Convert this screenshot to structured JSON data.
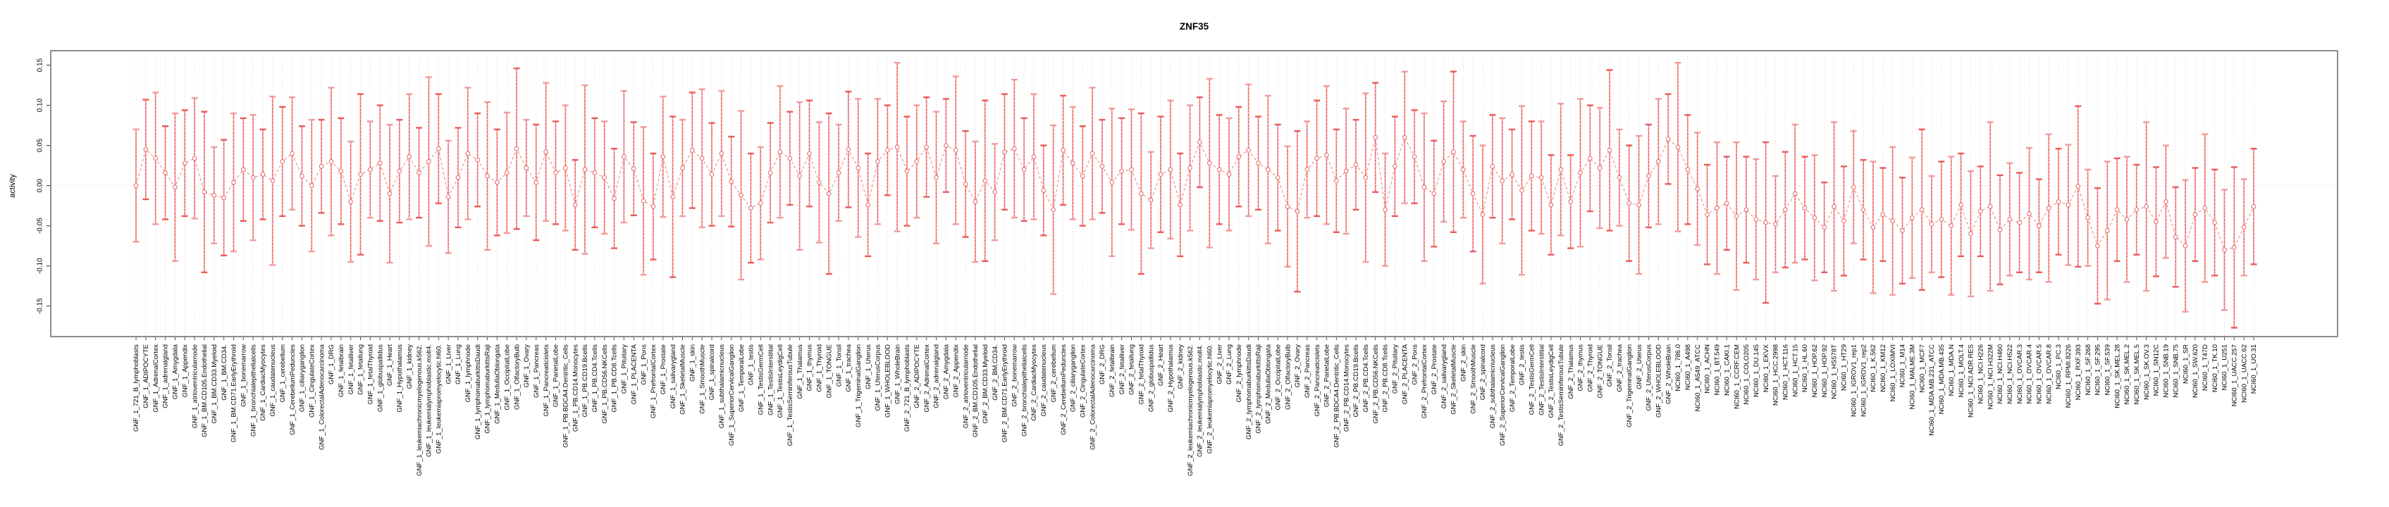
{
  "title": "ZNF35",
  "y_axis": {
    "label": "activity",
    "tick_labels": [
      "0.15",
      "0.10",
      "0.05",
      "0.00",
      "-0.05",
      "-0.10",
      "-0.15"
    ],
    "tick_values": [
      0.15,
      0.1,
      0.05,
      0.0,
      -0.05,
      -0.1,
      -0.15
    ]
  },
  "colors": {
    "bar_solid": "#f6a8a8",
    "bar_dash": "#e85757",
    "cap_light": "#f29b9b",
    "cap_dark": "#ea5b5b",
    "point": "#ec7272",
    "connect": "#ec8080",
    "grid": "#d9d9d9",
    "zero_line": "#d4d4d4",
    "box": "#8c8c8c",
    "tick": "#4d4d4d",
    "label_text": "#000000"
  },
  "chart_data": {
    "type": "scatter",
    "subtype": "points-with-error-bars",
    "title": "ZNF35",
    "xlabel": "",
    "ylabel": "activity",
    "ylim": [
      -0.188,
      0.168
    ],
    "grid": "vertical-dotted-per-category, dotted-zero-line",
    "legend": "none",
    "gnf_names": [
      "721_B_lymphoblasts",
      "ADIPOCYTE",
      "AdrenalCortex",
      "adrenalgland",
      "Amygdala",
      "Appendix",
      "atrioventricularnode",
      "BM.CD105.Endothelial",
      "BM.CD33.Myeloid",
      "BM.CD34.",
      "BM.CD71.EarlyErythroid",
      "bonemarrow",
      "bronchialepithelialcells",
      "CardiacMyocytes",
      "caudatenucleus",
      "cerebellum",
      "CerebellumPeduncles",
      "ciliaryganglion",
      "CingulateCortex",
      "ColorectalAdenocarcinoma",
      "DRG",
      "fetalbrain",
      "fetalliver",
      "fetallung",
      "fetalThyroid",
      "globuspallidus",
      "Heart",
      "Hypothalamus",
      "kidney",
      "leukemiachronicmyelogenous.k562.",
      "leukemialymphoblastic.molt4.",
      "leukemiapromyelocytic.hl60.",
      "Liver",
      "Lung",
      "lymphnode",
      "lymphomaburkittsDaudi",
      "lymphomaburkittsRaji",
      "MedullaOblongata",
      "OccipitalLobe",
      "OlfactoryBulb",
      "Ovary",
      "Pancreas",
      "Pancreaticislets",
      "ParietalLobe",
      "PB.BDCA4.Dentritic_Cells",
      "PB.CD14.Monocytes",
      "PB.CD19.Bcells",
      "PB.CD4.Tcells",
      "PB.CD56.NKCells",
      "PB.CD8.Tcells",
      "Pituitary",
      "PLACENTA",
      "Pons",
      "PrefrontalCortex",
      "Prostate",
      "salivarygland",
      "SkeletalMuscle",
      "skin",
      "SmoothMuscle",
      "spinalcord",
      "subthalamicnucleus",
      "SuperiorCervicalGanglion",
      "TemporalLobe",
      "testis",
      "TestisGermCell",
      "TestisInterstitial",
      "TestisLeydigCell",
      "TestisSeminiferousTubule",
      "Thalamus",
      "thymus",
      "Thyroid",
      "TONGUE",
      "Tonsil",
      "trachea",
      "TrigeminalGanglion",
      "Uterus",
      "UterusCorpus",
      "WHOLEBLOOD",
      "WholeBrain"
    ],
    "nci60_names": [
      "786.0",
      "A498",
      "A549_ATCC",
      "ACHN",
      "BT.549",
      "CAKI.1",
      "CCRF.CEM",
      "COLO205",
      "DU.145",
      "EKVX",
      "HCC.2998",
      "HCT.116",
      "HCT.15",
      "HL.60",
      "HOP.62",
      "HOP.92",
      "HS578T",
      "HT29",
      "IGROV1_rep1",
      "IGROV1_rep2",
      "K.562",
      "KM12",
      "LOXIMVI",
      "M14",
      "MALME.3M",
      "MCF7",
      "MDA.MB.231_ATCC",
      "MDA.MB.435",
      "MDA.N",
      "MOLT.4",
      "NCI.ADR.RES",
      "NCI.H226",
      "NCI.H322M",
      "NCI.H460",
      "NCI.H522",
      "OVCAR.3",
      "OVCAR.4",
      "OVCAR.5",
      "OVCAR.8",
      "PC.3",
      "RPMI.8226",
      "RXF.393",
      "SF.268",
      "SF.295",
      "SF.539",
      "SK.MEL.28",
      "SK.MEL.2",
      "SK.MEL.5",
      "SK.OV.3",
      "SN12C",
      "SNB.19",
      "SNB.75",
      "SR",
      "SW.620",
      "T47D",
      "TK.10",
      "U251",
      "UACC.257",
      "UACC.62",
      "UO.31"
    ],
    "category_groups": [
      {
        "prefix": "GNF_1_",
        "names_ref": "gnf_names"
      },
      {
        "prefix": "GNF_2_",
        "names_ref": "gnf_names"
      },
      {
        "prefix": "NCI60_1_",
        "names_ref": "nci60_names"
      }
    ],
    "values": [
      0.0,
      0.045,
      0.034,
      0.016,
      -0.002,
      0.028,
      0.034,
      -0.008,
      -0.012,
      -0.015,
      0.004,
      0.02,
      0.01,
      0.014,
      0.006,
      0.03,
      0.04,
      0.012,
      0.0,
      0.024,
      0.03,
      0.018,
      -0.02,
      0.014,
      0.02,
      0.028,
      -0.01,
      0.018,
      0.036,
      0.016,
      0.03,
      0.046,
      -0.014,
      0.01,
      0.04,
      0.032,
      0.012,
      0.004,
      0.016,
      0.046,
      0.022,
      0.004,
      0.042,
      0.016,
      0.022,
      -0.024,
      0.02,
      0.016,
      0.01,
      -0.016,
      0.036,
      0.021,
      -0.019,
      -0.026,
      0.036,
      -0.014,
      0.022,
      0.044,
      0.034,
      0.014,
      0.04,
      0.005,
      -0.012,
      -0.028,
      -0.022,
      0.016,
      0.042,
      0.034,
      0.012,
      0.04,
      0.004,
      -0.01,
      0.016,
      0.045,
      0.022,
      -0.024,
      0.03,
      0.044,
      0.048,
      0.018,
      0.03,
      0.048,
      0.01,
      0.05,
      0.044,
      0.002,
      -0.02,
      0.006,
      -0.008,
      0.042,
      0.046,
      0.02,
      0.036,
      -0.006,
      -0.03,
      0.044,
      0.028,
      0.012,
      0.04,
      0.024,
      0.004,
      0.018,
      0.02,
      -0.01,
      -0.018,
      0.014,
      0.02,
      -0.024,
      0.022,
      0.054,
      0.028,
      0.02,
      0.014,
      0.036,
      0.044,
      0.028,
      0.02,
      0.01,
      -0.026,
      -0.032,
      0.02,
      0.034,
      0.038,
      0.006,
      0.018,
      0.026,
      0.01,
      0.06,
      -0.03,
      0.024,
      0.06,
      0.036,
      -0.002,
      -0.01,
      0.03,
      0.042,
      0.02,
      -0.01,
      -0.036,
      0.024,
      0.006,
      0.014,
      -0.006,
      0.012,
      0.01,
      -0.024,
      0.02,
      -0.02,
      0.016,
      0.034,
      0.022,
      0.044,
      0.01,
      -0.022,
      -0.024,
      0.012,
      0.03,
      0.058,
      0.048,
      0.02,
      -0.004,
      -0.036,
      -0.028,
      -0.022,
      -0.038,
      -0.03,
      -0.042,
      -0.046,
      -0.048,
      -0.03,
      -0.01,
      -0.028,
      -0.04,
      -0.052,
      -0.026,
      -0.044,
      -0.002,
      -0.03,
      -0.052,
      -0.036,
      -0.044,
      -0.056,
      -0.04,
      -0.03,
      -0.048,
      -0.042,
      -0.05,
      -0.024,
      -0.06,
      -0.032,
      -0.026,
      -0.055,
      -0.042,
      -0.046,
      -0.035,
      -0.05,
      -0.028,
      -0.02,
      -0.024,
      -0.001,
      -0.04,
      -0.075,
      -0.056,
      -0.03,
      -0.042,
      -0.03,
      -0.026,
      -0.045,
      -0.02,
      -0.064,
      -0.075,
      -0.036,
      -0.028,
      -0.046,
      -0.08,
      -0.077,
      -0.052,
      -0.026
    ],
    "ci_half": [
      0.07,
      0.062,
      0.082,
      0.058,
      0.092,
      0.066,
      0.075,
      0.1,
      0.06,
      0.072,
      0.086,
      0.064,
      0.078,
      0.056,
      0.105,
      0.068,
      0.07,
      0.062,
      0.082,
      0.058,
      0.092,
      0.066,
      0.075,
      0.1,
      0.06,
      0.072,
      0.086,
      0.064,
      0.078,
      0.056,
      0.105,
      0.068,
      0.07,
      0.062,
      0.082,
      0.058,
      0.092,
      0.066,
      0.075,
      0.1,
      0.06,
      0.072,
      0.086,
      0.064,
      0.078,
      0.056,
      0.105,
      0.068,
      0.07,
      0.062,
      0.082,
      0.058,
      0.092,
      0.066,
      0.075,
      0.1,
      0.06,
      0.072,
      0.086,
      0.064,
      0.078,
      0.056,
      0.105,
      0.068,
      0.07,
      0.062,
      0.082,
      0.058,
      0.092,
      0.066,
      0.075,
      0.1,
      0.06,
      0.072,
      0.086,
      0.064,
      0.078,
      0.056,
      0.105,
      0.068,
      0.07,
      0.062,
      0.082,
      0.058,
      0.092,
      0.066,
      0.075,
      0.1,
      0.06,
      0.072,
      0.086,
      0.064,
      0.078,
      0.056,
      0.105,
      0.068,
      0.07,
      0.062,
      0.082,
      0.058,
      0.092,
      0.066,
      0.075,
      0.1,
      0.06,
      0.072,
      0.086,
      0.064,
      0.078,
      0.056,
      0.105,
      0.068,
      0.07,
      0.062,
      0.082,
      0.058,
      0.092,
      0.066,
      0.075,
      0.1,
      0.06,
      0.072,
      0.086,
      0.064,
      0.078,
      0.056,
      0.105,
      0.068,
      0.07,
      0.062,
      0.082,
      0.058,
      0.092,
      0.066,
      0.075,
      0.1,
      0.06,
      0.072,
      0.086,
      0.064,
      0.078,
      0.056,
      0.105,
      0.068,
      0.07,
      0.062,
      0.082,
      0.058,
      0.092,
      0.066,
      0.075,
      0.1,
      0.06,
      0.072,
      0.086,
      0.064,
      0.078,
      0.056,
      0.105,
      0.068,
      0.07,
      0.062,
      0.082,
      0.058,
      0.092,
      0.066,
      0.075,
      0.1,
      0.06,
      0.072,
      0.086,
      0.064,
      0.078,
      0.056,
      0.105,
      0.068,
      0.07,
      0.062,
      0.082,
      0.058,
      0.092,
      0.066,
      0.075,
      0.1,
      0.06,
      0.072,
      0.086,
      0.064,
      0.078,
      0.056,
      0.105,
      0.068,
      0.07,
      0.062,
      0.082,
      0.058,
      0.092,
      0.066,
      0.075,
      0.1,
      0.06,
      0.072,
      0.086,
      0.064,
      0.078,
      0.056,
      0.105,
      0.068,
      0.07,
      0.062,
      0.082,
      0.058,
      0.092,
      0.066,
      0.075,
      0.1,
      0.06,
      0.072
    ]
  }
}
